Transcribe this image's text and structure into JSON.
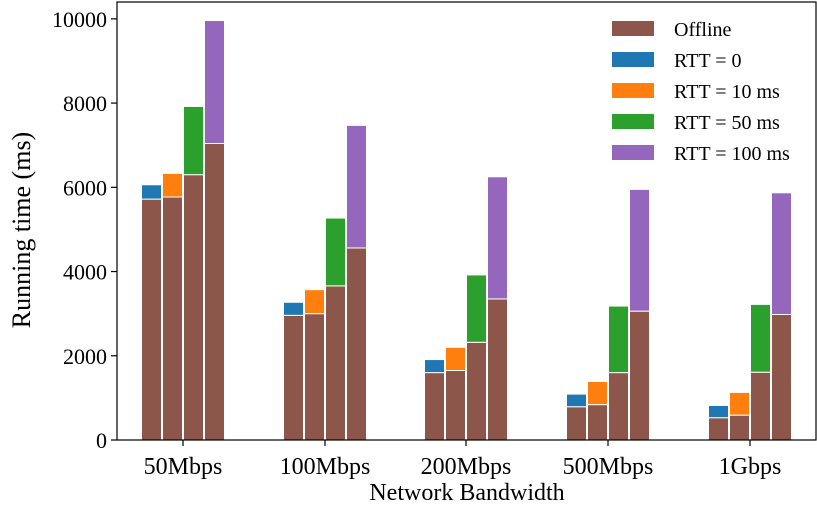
{
  "chart_data": {
    "type": "bar",
    "stacked": true,
    "title": "",
    "xlabel": "Network Bandwidth",
    "ylabel": "Running time (ms)",
    "ylim": [
      0,
      10400
    ],
    "yticks": [
      0,
      2000,
      4000,
      6000,
      8000,
      10000
    ],
    "categories": [
      "50Mbps",
      "100Mbps",
      "200Mbps",
      "500Mbps",
      "1Gbps"
    ],
    "grid": false,
    "legend_position": "top-right",
    "series": [
      {
        "name": "RTT = 0",
        "color": "#1f77b4",
        "offline": [
          5720,
          2960,
          1600,
          790,
          530
        ],
        "total": [
          6060,
          3270,
          1910,
          1090,
          820
        ]
      },
      {
        "name": "RTT = 10 ms",
        "color": "#ff7f0e",
        "offline": [
          5770,
          3000,
          1650,
          840,
          590
        ],
        "total": [
          6330,
          3570,
          2200,
          1390,
          1130
        ]
      },
      {
        "name": "RTT = 50 ms",
        "color": "#2ca02c",
        "offline": [
          6300,
          3660,
          2320,
          1600,
          1610
        ],
        "total": [
          7920,
          5270,
          3920,
          3180,
          3220
        ]
      },
      {
        "name": "RTT = 100 ms",
        "color": "#9467bd",
        "offline": [
          7040,
          4560,
          3350,
          3060,
          2980
        ],
        "total": [
          9960,
          7470,
          6250,
          5950,
          5870
        ]
      }
    ],
    "legend": [
      {
        "label": "Offline",
        "color": "#8c564b"
      },
      {
        "label": "RTT = 0",
        "color": "#1f77b4"
      },
      {
        "label": "RTT = 10 ms",
        "color": "#ff7f0e"
      },
      {
        "label": "RTT = 50 ms",
        "color": "#2ca02c"
      },
      {
        "label": "RTT = 100 ms",
        "color": "#9467bd"
      }
    ],
    "offline_color": "#8c564b"
  }
}
